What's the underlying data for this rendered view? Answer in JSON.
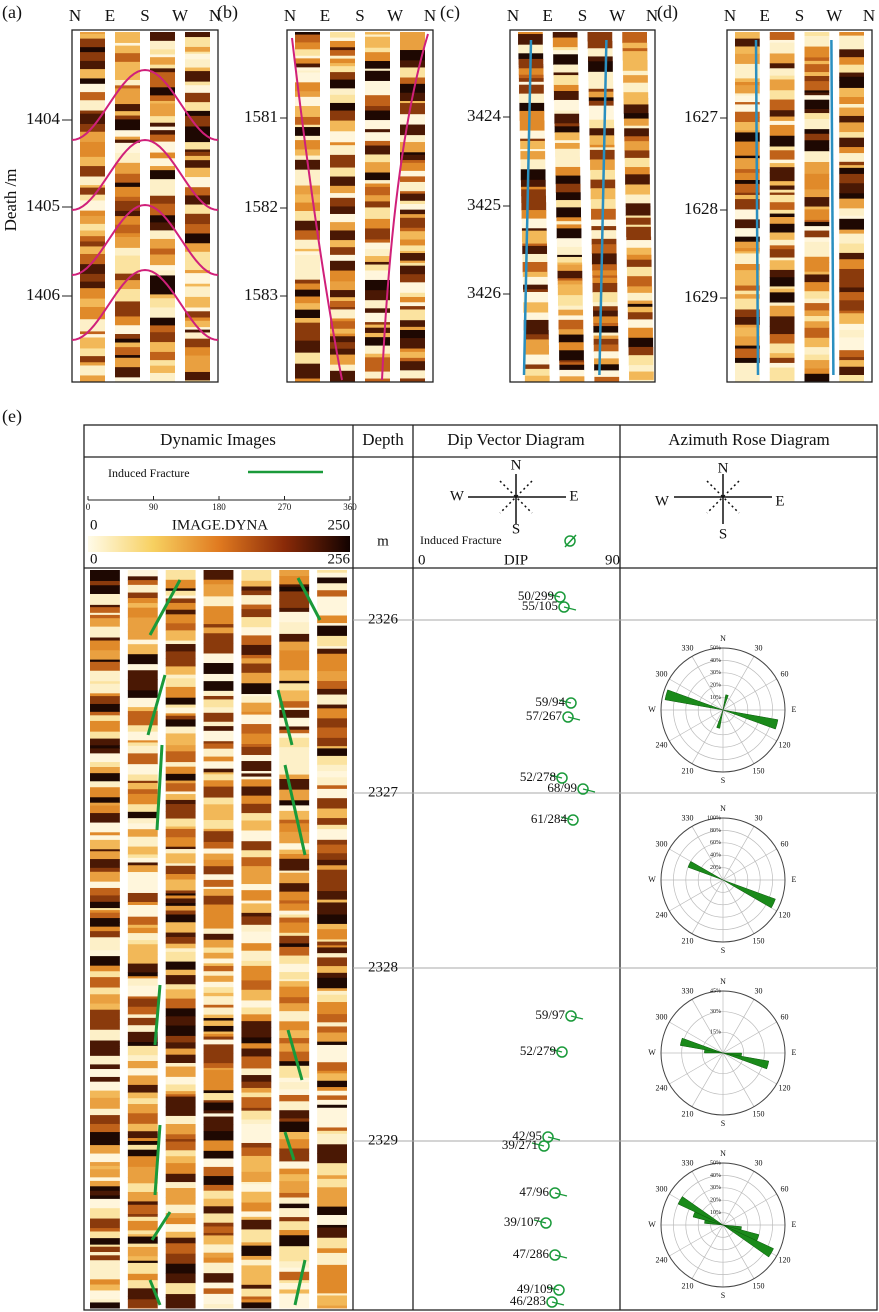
{
  "panels": [
    {
      "label": "(a)",
      "compass": [
        "N",
        "E",
        "S",
        "W",
        "N"
      ],
      "depths": [
        "1404",
        "1405",
        "1406"
      ]
    },
    {
      "label": "(b)",
      "compass": [
        "N",
        "E",
        "S",
        "W",
        "N"
      ],
      "depths": [
        "1581",
        "1582",
        "1583"
      ]
    },
    {
      "label": "(c)",
      "compass": [
        "N",
        "E",
        "S",
        "W",
        "N"
      ],
      "depths": [
        "3424",
        "3425",
        "3426"
      ]
    },
    {
      "label": "(d)",
      "compass": [
        "N",
        "E",
        "S",
        "W",
        "N"
      ],
      "depths": [
        "1627",
        "1628",
        "1629"
      ]
    }
  ],
  "y_axis_label": "Death /m",
  "panel_e": {
    "label": "(e)",
    "headers": [
      "Dynamic Images",
      "Depth",
      "Dip Vector Diagram",
      "Azimuth Rose Diagram"
    ],
    "legend": {
      "label": "Induced Fracture",
      "scale_ticks": [
        "0",
        "90",
        "180",
        "270",
        "360"
      ],
      "colorbar_title": "IMAGE.DYNA",
      "colorbar_min": "0",
      "colorbar_max": "250",
      "colorbar2_min": "0",
      "colorbar2_max": "256"
    },
    "depth_unit": "m",
    "compass": [
      "N",
      "E",
      "S",
      "W"
    ],
    "dip_legend": "Induced Fracture",
    "dip_axis": [
      "0",
      "DIP",
      "90"
    ],
    "depths": [
      "2326",
      "2327",
      "2328",
      "2329"
    ],
    "dips": [
      "50/299",
      "55/105",
      "59/94",
      "57/267",
      "52/278",
      "68/99",
      "61/284",
      "59/97",
      "52/279",
      "42/95",
      "39/271",
      "47/96",
      "39/107",
      "47/286",
      "49/109",
      "46/283"
    ],
    "rose_angles": [
      "30",
      "60",
      "120",
      "150",
      "210",
      "240",
      "300",
      "330"
    ],
    "roses": [
      {
        "rings": [
          "10%",
          "20%",
          "30%",
          "40%",
          "50%"
        ]
      },
      {
        "rings": [
          "20%",
          "40%",
          "60%",
          "80%",
          "100%"
        ]
      },
      {
        "rings": [
          "15%",
          "30%",
          "45%"
        ]
      },
      {
        "rings": [
          "10%",
          "20%",
          "30%",
          "40%",
          "50%"
        ]
      }
    ]
  }
}
